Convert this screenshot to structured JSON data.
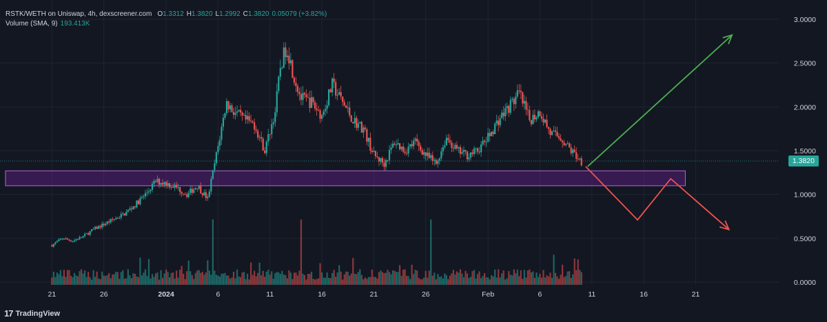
{
  "legend": {
    "title": "RSTK/WETH on Uniswap, 4h, dexscreener.com",
    "o_label": "O",
    "o_value": "1.3312",
    "h_label": "H",
    "h_value": "1.3820",
    "l_label": "L",
    "l_value": "1.2992",
    "c_label": "C",
    "c_value": "1.3820",
    "change": "0.05079 (+3.82%)",
    "volume_label": "Volume (SMA, 9)",
    "volume_value": "193.413K"
  },
  "last_price_label": "1.3820",
  "branding": {
    "name": "TradingView",
    "mark": "17"
  },
  "colors": {
    "background": "#131722",
    "up": "#26a69a",
    "down": "#ef5350",
    "zone": "#7b1fa2",
    "arrow_up": "#4caf50",
    "arrow_down": "#ef5350",
    "text": "#d1d4dc"
  },
  "chart_data": {
    "type": "candlestick",
    "y_ticks": [
      "3.0000",
      "2.5000",
      "2.0000",
      "1.5000",
      "1.0000",
      "0.5000",
      "0.0000"
    ],
    "ylim": [
      0,
      3.0
    ],
    "x_ticks": [
      "21",
      "26",
      "2024",
      "6",
      "11",
      "16",
      "21",
      "26",
      "Feb",
      "6",
      "11",
      "16",
      "21"
    ],
    "x_tick_days": [
      -11,
      -6,
      0,
      5,
      10,
      15,
      20,
      25,
      31,
      36,
      41,
      46,
      51
    ],
    "xlim_days": [
      -16,
      59
    ],
    "last_price": 1.382,
    "price_path": [
      {
        "day": -11.0,
        "price": 0.42
      },
      {
        "day": -10.0,
        "price": 0.5
      },
      {
        "day": -9.0,
        "price": 0.47
      },
      {
        "day": -8.0,
        "price": 0.52
      },
      {
        "day": -7.0,
        "price": 0.6
      },
      {
        "day": -6.0,
        "price": 0.66
      },
      {
        "day": -5.0,
        "price": 0.72
      },
      {
        "day": -4.0,
        "price": 0.78
      },
      {
        "day": -3.0,
        "price": 0.88
      },
      {
        "day": -2.0,
        "price": 1.0
      },
      {
        "day": -1.0,
        "price": 1.15
      },
      {
        "day": 0.0,
        "price": 1.13
      },
      {
        "day": 1.0,
        "price": 1.08
      },
      {
        "day": 2.0,
        "price": 1.0
      },
      {
        "day": 3.0,
        "price": 1.1
      },
      {
        "day": 4.0,
        "price": 0.95
      },
      {
        "day": 5.0,
        "price": 1.55
      },
      {
        "day": 5.8,
        "price": 2.05
      },
      {
        "day": 6.5,
        "price": 1.95
      },
      {
        "day": 7.5,
        "price": 1.85
      },
      {
        "day": 8.5,
        "price": 1.8
      },
      {
        "day": 9.5,
        "price": 1.5
      },
      {
        "day": 10.5,
        "price": 1.95
      },
      {
        "day": 11.0,
        "price": 2.45
      },
      {
        "day": 11.6,
        "price": 2.7
      },
      {
        "day": 12.3,
        "price": 2.35
      },
      {
        "day": 13.0,
        "price": 2.1
      },
      {
        "day": 14.0,
        "price": 2.05
      },
      {
        "day": 15.0,
        "price": 1.9
      },
      {
        "day": 16.0,
        "price": 2.25
      },
      {
        "day": 17.0,
        "price": 2.05
      },
      {
        "day": 18.0,
        "price": 1.85
      },
      {
        "day": 19.0,
        "price": 1.75
      },
      {
        "day": 20.0,
        "price": 1.45
      },
      {
        "day": 21.0,
        "price": 1.35
      },
      {
        "day": 22.0,
        "price": 1.6
      },
      {
        "day": 23.0,
        "price": 1.5
      },
      {
        "day": 24.0,
        "price": 1.6
      },
      {
        "day": 25.0,
        "price": 1.45
      },
      {
        "day": 26.0,
        "price": 1.35
      },
      {
        "day": 27.0,
        "price": 1.65
      },
      {
        "day": 28.0,
        "price": 1.5
      },
      {
        "day": 29.0,
        "price": 1.45
      },
      {
        "day": 30.0,
        "price": 1.5
      },
      {
        "day": 31.0,
        "price": 1.65
      },
      {
        "day": 32.0,
        "price": 1.85
      },
      {
        "day": 33.0,
        "price": 2.0
      },
      {
        "day": 34.0,
        "price": 2.15
      },
      {
        "day": 35.0,
        "price": 1.85
      },
      {
        "day": 36.0,
        "price": 1.95
      },
      {
        "day": 37.0,
        "price": 1.7
      },
      {
        "day": 38.0,
        "price": 1.65
      },
      {
        "day": 39.0,
        "price": 1.5
      },
      {
        "day": 40.0,
        "price": 1.38
      }
    ],
    "volume_spike_days": [
      4.5,
      13.0,
      25.5
    ],
    "support_zone": {
      "day_start": -16,
      "day_end": 50,
      "price_low": 1.1,
      "price_high": 1.27
    },
    "arrow_up": {
      "points": [
        {
          "day": 40.6,
          "price": 1.32
        },
        {
          "day": 54.5,
          "price": 2.82
        }
      ]
    },
    "arrow_down": {
      "points": [
        {
          "day": 40.4,
          "price": 1.32
        },
        {
          "day": 45.4,
          "price": 0.71
        },
        {
          "day": 48.6,
          "price": 1.18
        },
        {
          "day": 54.2,
          "price": 0.6
        }
      ]
    }
  }
}
